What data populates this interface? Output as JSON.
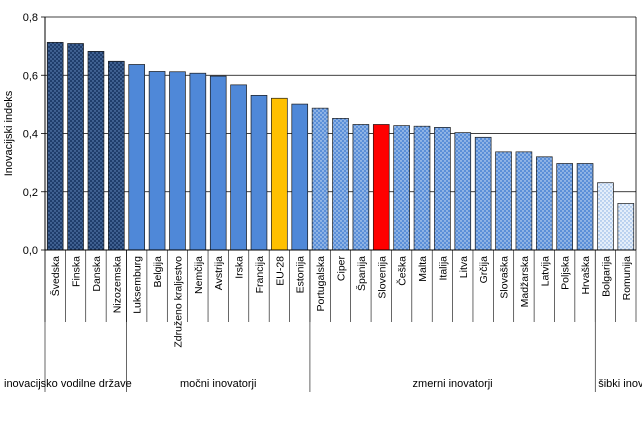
{
  "chart_data": {
    "type": "bar",
    "ylabel": "Inovacijski indeks",
    "xlabel": "",
    "title": "",
    "ylim": [
      0,
      0.8
    ],
    "ytick_step": 0.2,
    "yticks": [
      "0,0",
      "0,2",
      "0,4",
      "0,6",
      "0,8"
    ],
    "grid": true,
    "categories": [
      "Švedska",
      "Finska",
      "Danska",
      "Nizozemska",
      "Luksemburg",
      "Belgija",
      "Združeno kraljestvo",
      "Nemčija",
      "Avstrija",
      "Irska",
      "Francija",
      "EU-28",
      "Estonija",
      "Portugalska",
      "Ciper",
      "Španija",
      "Slovenija",
      "Češka",
      "Malta",
      "Italija",
      "Litva",
      "Grčija",
      "Slovaška",
      "Madžarska",
      "Latvija",
      "Poljska",
      "Hrvaška",
      "Bolgarija",
      "Romunija"
    ],
    "values": [
      0.713,
      0.709,
      0.682,
      0.648,
      0.637,
      0.613,
      0.612,
      0.607,
      0.597,
      0.567,
      0.531,
      0.521,
      0.501,
      0.487,
      0.452,
      0.431,
      0.431,
      0.427,
      0.425,
      0.421,
      0.403,
      0.387,
      0.337,
      0.337,
      0.32,
      0.297,
      0.297,
      0.231,
      0.16
    ],
    "groups": [
      {
        "label": "inovacijsko vodilne države",
        "count": 4,
        "pattern": "dark",
        "color": "#1f3d6b"
      },
      {
        "label": "močni inovatorji",
        "count": 9,
        "pattern": "solid",
        "color": "#4f88d8"
      },
      {
        "label": "zmerni inovatorji",
        "count": 14,
        "pattern": "dots",
        "color": "#5b8fd8"
      },
      {
        "label": "šibki inovatorji",
        "count": 2,
        "pattern": "light",
        "color": "#bcd2ef"
      }
    ],
    "highlights": {
      "EU-28": "#ffc000",
      "Slovenija": "#ff0000"
    }
  }
}
